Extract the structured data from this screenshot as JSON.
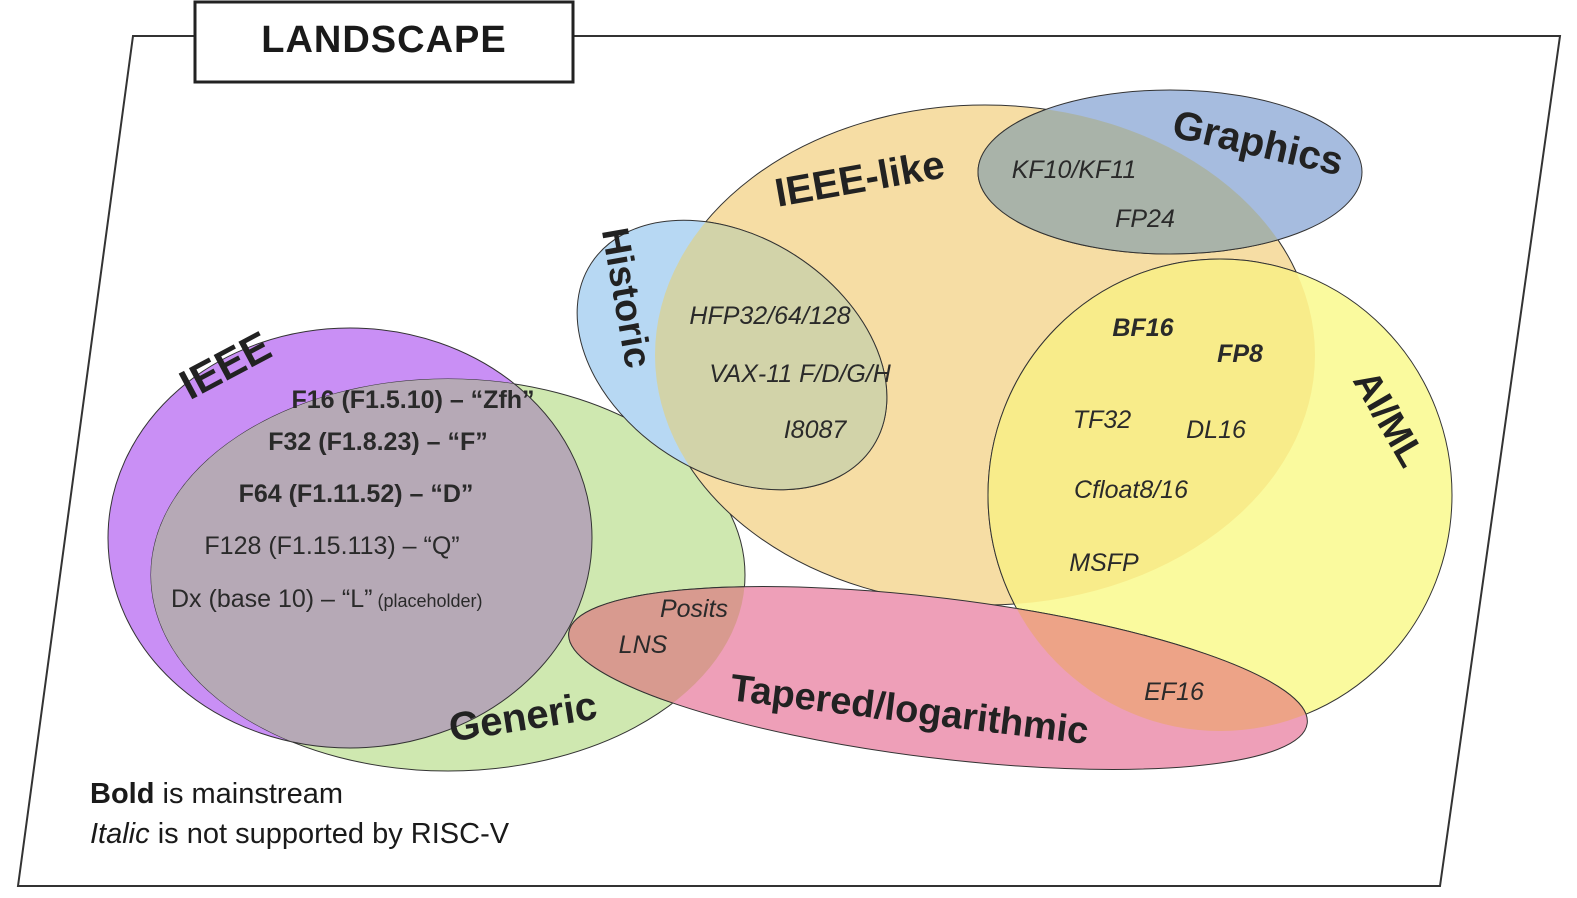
{
  "title": "LANDSCAPE",
  "sets": [
    {
      "id": "ieee",
      "label": "IEEE",
      "color": "#c98ff5"
    },
    {
      "id": "generic",
      "label": "Generic",
      "color": "#cfe8b0"
    },
    {
      "id": "historic",
      "label": "Historic",
      "color": "#b7d8f3"
    },
    {
      "id": "ieee-like",
      "label": "IEEE-like",
      "color": "#f6dda4"
    },
    {
      "id": "graphics",
      "label": "Graphics",
      "color": "#a6bcdf"
    },
    {
      "id": "aiml",
      "label": "AI/ML",
      "color": "#fafa9e"
    },
    {
      "id": "tapered",
      "label": "Tapered/logarithmic",
      "color": "#ee9fb8"
    }
  ],
  "items": {
    "f16": "F16 (F1.5.10) – “Zfh”",
    "f32": "F32 (F1.8.23) – “F”",
    "f64": "F64 (F1.11.52) – “D”",
    "f128": "F128 (F1.15.113) – “Q”",
    "dx": "Dx (base 10) – “L”",
    "dx_note": "(placeholder)",
    "hfp": "HFP32/64/128",
    "vax": "VAX-11 F/D/G/H",
    "i8087": "I8087",
    "kf10": "KF10/KF11",
    "fp24": "FP24",
    "bf16": "BF16",
    "fp8": "FP8",
    "tf32": "TF32",
    "dl16": "DL16",
    "cfloat": "Cfloat8/16",
    "msfp": "MSFP",
    "posits": "Posits",
    "lns": "LNS",
    "ef16": "EF16"
  },
  "legend": {
    "bold_word": "Bold",
    "bold_rest": " is mainstream",
    "italic_word": "Italic",
    "italic_rest": " is not supported by RISC-V"
  },
  "colors": {
    "ieee_generic_overlap": "#b6a9b6",
    "historic_ieeelike_overlap": "#d2d3a9",
    "graphics_ieeelike_overlap": "#a9b3a9",
    "aiml_ieeelike_overlap": "#f8ec8a",
    "tapered_generic_overlap": "#d89a8f",
    "tapered_aiml_overlap": "#eda387",
    "outline": "#333333"
  }
}
